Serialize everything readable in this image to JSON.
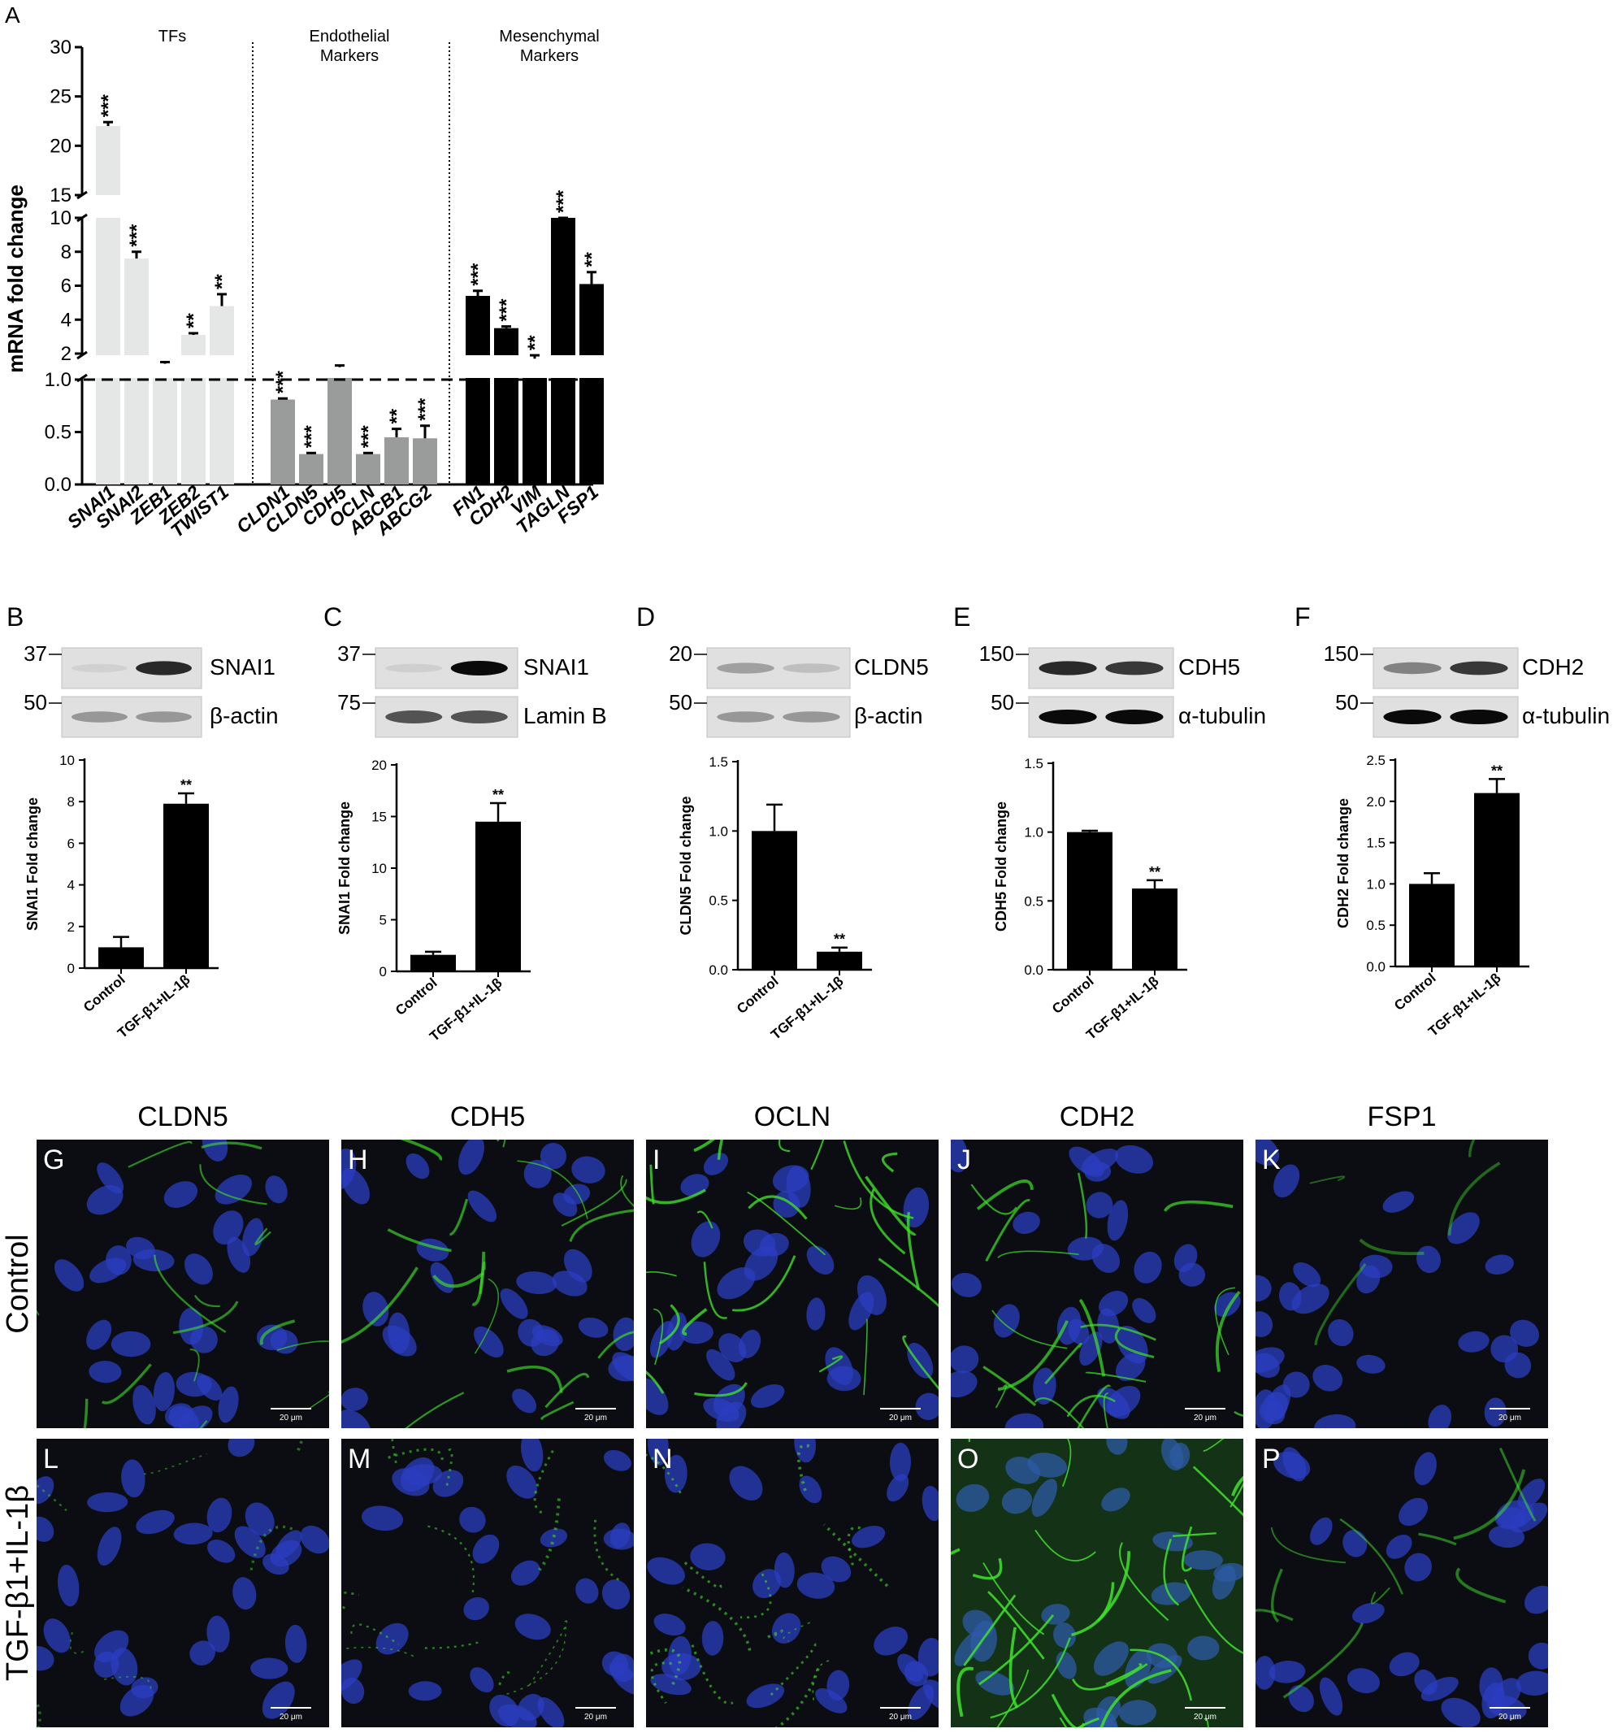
{
  "panel_a": {
    "letter": "A",
    "ylabel": "mRNA fold change",
    "groups": [
      {
        "title_lines": [
          "TFs"
        ],
        "color": "#e4e7e5",
        "genes": [
          "SNAI1",
          "SNAI2",
          "ZEB1",
          "ZEB2",
          "TWIST1"
        ]
      },
      {
        "title_lines": [
          "Endothelial",
          "Markers"
        ],
        "color": "#9a9c9b",
        "genes": [
          "CLDN1",
          "CLDN5",
          "CDH5",
          "OCLN",
          "ABCB1",
          "ABCG2"
        ]
      },
      {
        "title_lines": [
          "Mesenchymal",
          "Markers"
        ],
        "color": "#000000",
        "genes": [
          "FN1",
          "CDH2",
          "VIM",
          "TAGLN",
          "FSP1"
        ]
      }
    ],
    "yticks_top": [
      "30",
      "25",
      "20",
      "15"
    ],
    "yticks_mid": [
      "10",
      "8",
      "6",
      "4",
      "2"
    ],
    "yticks_low": [
      "1.0",
      "0.5",
      "0.0"
    ]
  },
  "chart_data": [
    {
      "type": "bar",
      "title": "",
      "ylabel": "mRNA fold change",
      "y_axis": "broken: segments [0,1], [1,10], [15,30]",
      "reference_line": 1.0,
      "categories": [
        "SNAI1",
        "SNAI2",
        "ZEB1",
        "ZEB2",
        "TWIST1",
        "CLDN1",
        "CLDN5",
        "CDH5",
        "OCLN",
        "ABCB1",
        "ABCG2",
        "FN1",
        "CDH2",
        "VIM",
        "TAGLN",
        "FSP1"
      ],
      "values": [
        22.0,
        7.6,
        1.4,
        3.1,
        4.8,
        0.81,
        0.29,
        1.2,
        0.29,
        0.45,
        0.44,
        5.4,
        3.5,
        1.7,
        10.0,
        6.1
      ],
      "errors": [
        0.4,
        0.4,
        0.1,
        0.1,
        0.7,
        0.01,
        0.01,
        0.1,
        0.01,
        0.08,
        0.12,
        0.3,
        0.1,
        0.2,
        0.0,
        0.7
      ],
      "significance": [
        "***",
        "***",
        "",
        "**",
        "**",
        "***",
        "***",
        "",
        "***",
        "**",
        "***",
        "***",
        "***",
        "**",
        "***",
        "**"
      ],
      "series_colors": [
        "#e4e7e5",
        "#9a9c9b",
        "#000000"
      ]
    },
    {
      "type": "bar",
      "panel": "B",
      "categories": [
        "Control",
        "TGF-β1+IL-1β"
      ],
      "values": [
        1.0,
        7.9
      ],
      "errors": [
        0.5,
        0.5
      ],
      "significance": [
        "",
        "**"
      ],
      "ylabel": "SNAI1 Fold change",
      "ylim": [
        0,
        10
      ],
      "yticks": [
        "0",
        "2",
        "4",
        "6",
        "8",
        "10"
      ]
    },
    {
      "type": "bar",
      "panel": "C",
      "categories": [
        "Control",
        "TGF-β1+IL-1β"
      ],
      "values": [
        1.6,
        14.5
      ],
      "errors": [
        0.3,
        1.8
      ],
      "significance": [
        "",
        "**"
      ],
      "ylabel": "SNAI1 Fold change",
      "ylim": [
        0,
        20
      ],
      "yticks": [
        "0",
        "5",
        "10",
        "15",
        "20"
      ]
    },
    {
      "type": "bar",
      "panel": "D",
      "categories": [
        "Control",
        "TGF-β1+IL-1β"
      ],
      "values": [
        1.0,
        0.13
      ],
      "errors": [
        0.19,
        0.03
      ],
      "significance": [
        "",
        "**"
      ],
      "ylabel": "CLDN5 Fold change",
      "ylim": [
        0,
        1.5
      ],
      "yticks": [
        "0.0",
        "0.5",
        "1.0",
        "1.5"
      ]
    },
    {
      "type": "bar",
      "panel": "E",
      "categories": [
        "Control",
        "TGF-β1+IL-1β"
      ],
      "values": [
        1.0,
        0.59
      ],
      "errors": [
        0.01,
        0.06
      ],
      "significance": [
        "",
        "**"
      ],
      "ylabel": "CDH5 Fold change",
      "ylim": [
        0,
        1.5
      ],
      "yticks": [
        "0.0",
        "0.5",
        "1.0",
        "1.5"
      ]
    },
    {
      "type": "bar",
      "panel": "F",
      "categories": [
        "Control",
        "TGF-β1+IL-1β"
      ],
      "values": [
        1.0,
        2.1
      ],
      "errors": [
        0.13,
        0.17
      ],
      "significance": [
        "",
        "**"
      ],
      "ylabel": "CDH2 Fold change",
      "ylim": [
        0,
        2.5
      ],
      "yticks": [
        "0.0",
        "0.5",
        "1.0",
        "1.5",
        "2.0",
        "2.5"
      ]
    }
  ],
  "blots": [
    {
      "letter": "B",
      "top_mw": "37",
      "top_label": "SNAI1",
      "bottom_mw": "50",
      "bottom_label": "β-actin"
    },
    {
      "letter": "C",
      "top_mw": "37",
      "top_label": "SNAI1",
      "bottom_mw": "75",
      "bottom_label": "Lamin B"
    },
    {
      "letter": "D",
      "top_mw": "20",
      "top_label": "CLDN5",
      "bottom_mw": "50",
      "bottom_label": "β-actin"
    },
    {
      "letter": "E",
      "top_mw": "150",
      "top_label": "CDH5",
      "bottom_mw": "50",
      "bottom_label": "α-tubulin"
    },
    {
      "letter": "F",
      "top_mw": "150",
      "top_label": "CDH2",
      "bottom_mw": "50",
      "bottom_label": "α-tubulin"
    }
  ],
  "micrographs": {
    "columns": [
      "CLDN5",
      "CDH5",
      "OCLN",
      "CDH2",
      "FSP1"
    ],
    "rows": [
      "Control",
      "TGF-β1+IL-1β"
    ],
    "letters": [
      [
        "G",
        "H",
        "I",
        "J",
        "K"
      ],
      [
        "L",
        "M",
        "N",
        "O",
        "P"
      ]
    ],
    "intensity": [
      [
        0.45,
        0.55,
        0.8,
        0.65,
        0.15
      ],
      [
        0.2,
        0.4,
        0.45,
        0.95,
        0.3
      ]
    ],
    "scale_bar": "20 μm",
    "colors": {
      "nuclei": "#2b3ec0",
      "stain": "#3fe02a",
      "background": "#0b0d12"
    }
  }
}
